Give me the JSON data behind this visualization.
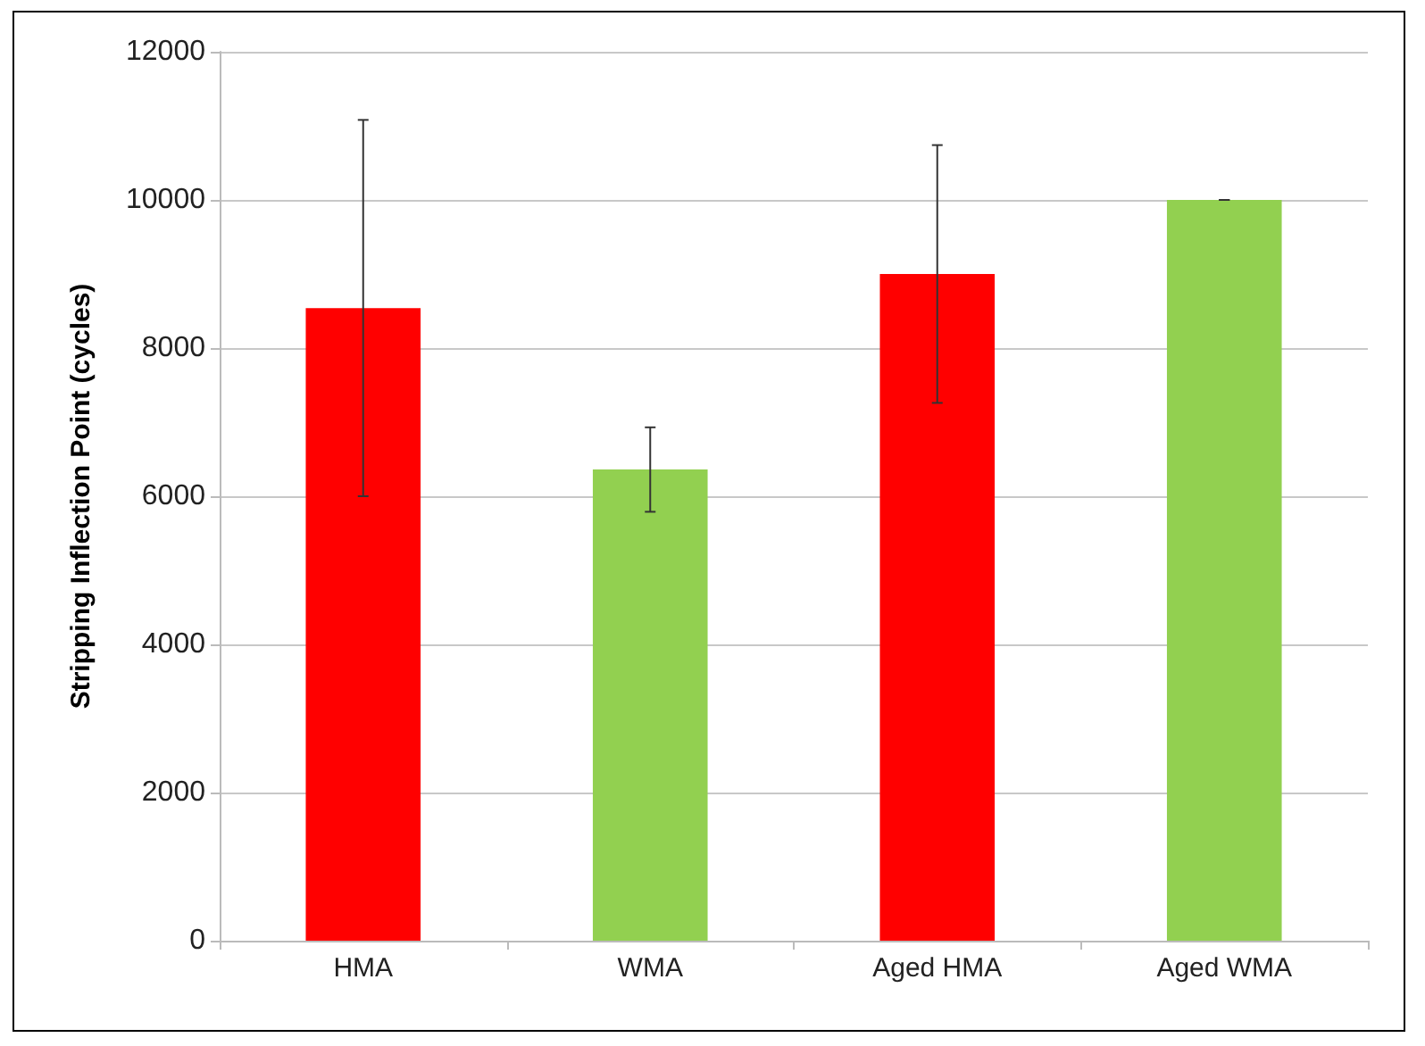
{
  "chart_data": {
    "type": "bar",
    "ylabel": "Stripping Inflection Point (cycles)",
    "categories": [
      "HMA",
      "WMA",
      "Aged HMA",
      "Aged WMA"
    ],
    "values": [
      8540,
      6360,
      9000,
      10000
    ],
    "colors": [
      "#ff0000",
      "#92d050",
      "#ff0000",
      "#92d050"
    ],
    "errors": [
      2540,
      570,
      1740,
      0
    ],
    "ylim": [
      0,
      12000
    ],
    "yticks": [
      0,
      2000,
      4000,
      6000,
      8000,
      10000,
      12000
    ],
    "grid": "y"
  }
}
